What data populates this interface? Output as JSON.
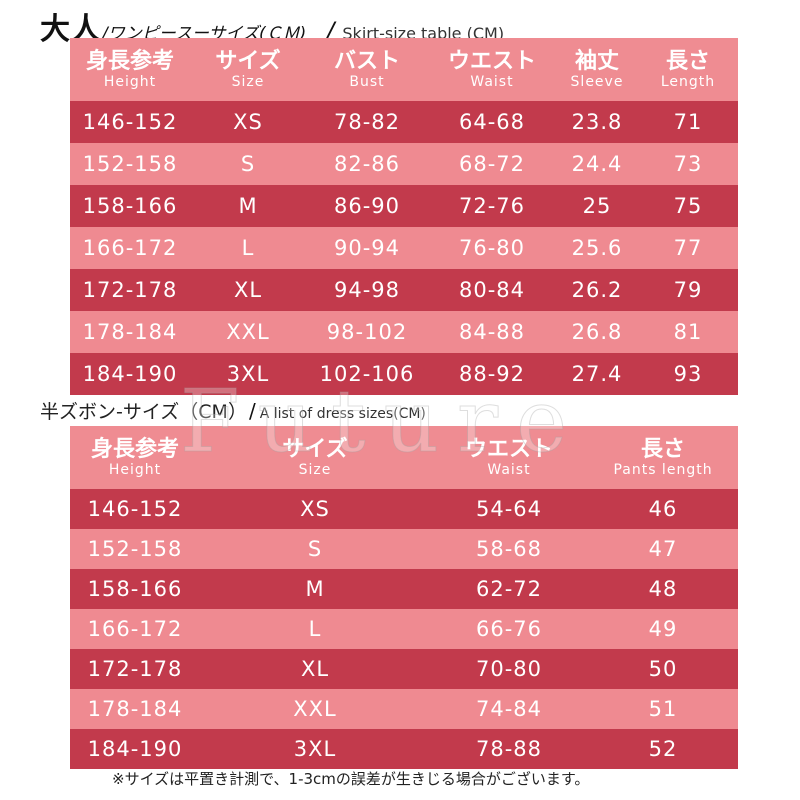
{
  "section1": {
    "title_main": "大人",
    "title_sub": "/ワンピースーサイズ(ＣＭ)",
    "title_slash": "/",
    "title_en": "Skirt-size table (CM)",
    "headers": [
      {
        "jp": "身長参考",
        "en": "Height"
      },
      {
        "jp": "サイズ",
        "en": "Size"
      },
      {
        "jp": "バスト",
        "en": "Bust"
      },
      {
        "jp": "ウエスト",
        "en": "Waist"
      },
      {
        "jp": "袖丈",
        "en": "Sleeve"
      },
      {
        "jp": "長さ",
        "en": "Length"
      }
    ],
    "rows": [
      [
        "146-152",
        "XS",
        "78-82",
        "64-68",
        "23.8",
        "71"
      ],
      [
        "152-158",
        "S",
        "82-86",
        "68-72",
        "24.4",
        "73"
      ],
      [
        "158-166",
        "M",
        "86-90",
        "72-76",
        "25",
        "75"
      ],
      [
        "166-172",
        "L",
        "90-94",
        "76-80",
        "25.6",
        "77"
      ],
      [
        "172-178",
        "XL",
        "94-98",
        "80-84",
        "26.2",
        "79"
      ],
      [
        "178-184",
        "XXL",
        "98-102",
        "84-88",
        "26.8",
        "81"
      ],
      [
        "184-190",
        "3XL",
        "102-106",
        "88-92",
        "27.4",
        "93"
      ]
    ]
  },
  "section2": {
    "title_main": "半ズボン-サイズ（CM）",
    "title_slash": "/",
    "title_en": "A list of dress sizes(CM)",
    "headers": [
      {
        "jp": "身長参考",
        "en": "Height"
      },
      {
        "jp": "サイズ",
        "en": "Size"
      },
      {
        "jp": "ウエスト",
        "en": "Waist"
      },
      {
        "jp": "長さ",
        "en": "Pants length"
      }
    ],
    "rows": [
      [
        "146-152",
        "XS",
        "54-64",
        "46"
      ],
      [
        "152-158",
        "S",
        "58-68",
        "47"
      ],
      [
        "158-166",
        "M",
        "62-72",
        "48"
      ],
      [
        "166-172",
        "L",
        "66-76",
        "49"
      ],
      [
        "172-178",
        "XL",
        "70-80",
        "50"
      ],
      [
        "178-184",
        "XXL",
        "74-84",
        "51"
      ],
      [
        "184-190",
        "3XL",
        "78-88",
        "52"
      ]
    ]
  },
  "watermark": "Future",
  "note": "※サイズは平置き計測で、1-3cmの誤差が生きじる場合がございます。",
  "colors": {
    "header_bg": "#ef8c92",
    "row_dark": "#c23a4c",
    "row_light": "#ef8a91",
    "text": "#ffffff"
  }
}
